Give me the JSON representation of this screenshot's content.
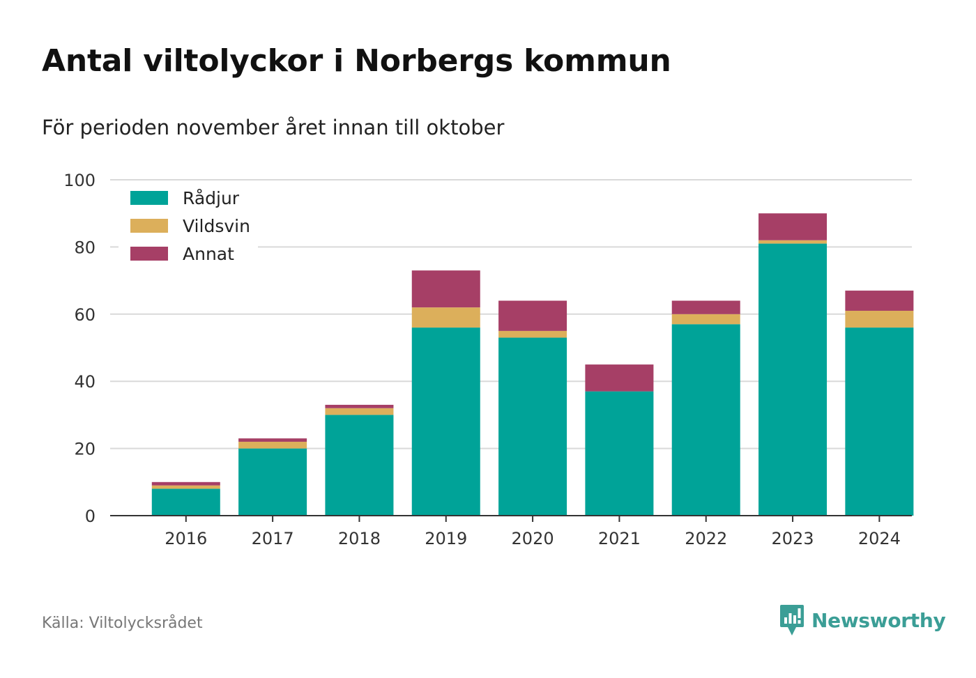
{
  "chart_data": {
    "type": "bar",
    "stacked": true,
    "title": "Antal viltolyckor i Norbergs kommun",
    "subtitle": "För perioden november året innan till oktober",
    "categories": [
      "2016",
      "2017",
      "2018",
      "2019",
      "2020",
      "2021",
      "2022",
      "2023",
      "2024"
    ],
    "series": [
      {
        "name": "Rådjur",
        "color": "#00a398",
        "values": [
          8,
          20,
          30,
          56,
          53,
          37,
          57,
          81,
          56
        ]
      },
      {
        "name": "Vildsvin",
        "color": "#dcaf5b",
        "values": [
          1,
          2,
          2,
          6,
          2,
          0,
          3,
          1,
          5
        ]
      },
      {
        "name": "Annat",
        "color": "#a63f66",
        "values": [
          1,
          1,
          1,
          11,
          9,
          8,
          4,
          8,
          6
        ]
      }
    ],
    "ylim": [
      0,
      100
    ],
    "yticks": [
      0,
      20,
      40,
      60,
      80,
      100
    ],
    "grid": true,
    "legend_position": "top-left",
    "xlabel": "",
    "ylabel": ""
  },
  "footer": {
    "source": "Källa: Viltolycksrådet",
    "brand": "Newsworthy",
    "brand_color": "#3b9e96",
    "brand_icon": "newsworthy-logo-icon"
  }
}
